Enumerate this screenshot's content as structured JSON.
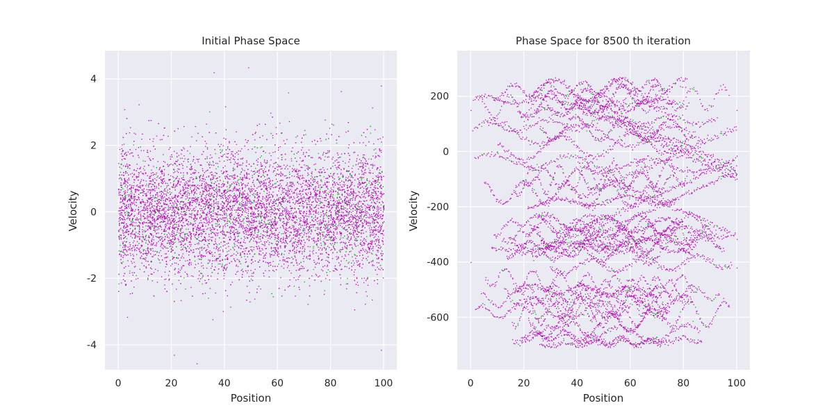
{
  "colors": {
    "panel_bg": "#EAEAF2",
    "grid": "#FFFFFF",
    "primary": "#C000C0",
    "secondary": "#00B000"
  },
  "chart_data": [
    {
      "type": "scatter",
      "title": "Initial Phase Space",
      "xlabel": "Position",
      "ylabel": "Velocity",
      "xlim": [
        -5,
        105
      ],
      "ylim": [
        -4.75,
        4.85
      ],
      "xticks": [
        0,
        20,
        40,
        60,
        80,
        100
      ],
      "yticks": [
        -4,
        -2,
        0,
        2,
        4
      ],
      "grid": true,
      "distribution": "Gaussian velocity spread centered at 0 across positions 0 to 100",
      "series": [
        {
          "color": "#C000C0",
          "points": [
            [
              2,
              0.4
            ],
            [
              13,
              -0.9
            ],
            [
              24,
              1.3
            ],
            [
              38,
              -0.2
            ],
            [
              47,
              0.6
            ],
            [
              58,
              -1.4
            ],
            [
              66,
              0.1
            ],
            [
              74,
              1.1
            ],
            [
              85,
              -0.5
            ],
            [
              97,
              0.8
            ]
          ]
        },
        {
          "color": "#00B000",
          "points": [
            [
              5,
              2.3
            ],
            [
              19,
              -2.6
            ],
            [
              33,
              2.9
            ],
            [
              51,
              -3.0
            ],
            [
              68,
              2.6
            ],
            [
              89,
              -2.4
            ]
          ]
        }
      ],
      "outliers": [
        [
          36,
          4.2
        ],
        [
          49,
          4.35
        ],
        [
          21,
          -4.3
        ],
        [
          99,
          -4.15
        ],
        [
          99,
          3.8
        ]
      ]
    },
    {
      "type": "scatter",
      "title": "Phase Space for 8500 th iteration",
      "xlabel": "Position",
      "ylabel": "Velocity",
      "xlim": [
        -5,
        105
      ],
      "ylim": [
        -790,
        365
      ],
      "xticks": [
        0,
        20,
        40,
        60,
        80,
        100
      ],
      "yticks": [
        -600,
        -400,
        -200,
        0,
        200
      ],
      "grid": true,
      "distribution": "Filamented stripes spanning velocities from about -700 to 270",
      "series": [
        {
          "color": "#C000C0",
          "points": [
            [
              0,
              150
            ],
            [
              20,
              110
            ],
            [
              40,
              20
            ],
            [
              60,
              -50
            ],
            [
              80,
              -120
            ],
            [
              100,
              150
            ],
            [
              0,
              -400
            ],
            [
              50,
              -380
            ],
            [
              100,
              -420
            ],
            [
              30,
              -650
            ],
            [
              20,
              -560
            ]
          ]
        },
        {
          "color": "#00B000",
          "points": [
            [
              10,
              0
            ],
            [
              45,
              -300
            ],
            [
              85,
              -500
            ],
            [
              62,
              60
            ]
          ]
        }
      ]
    }
  ]
}
